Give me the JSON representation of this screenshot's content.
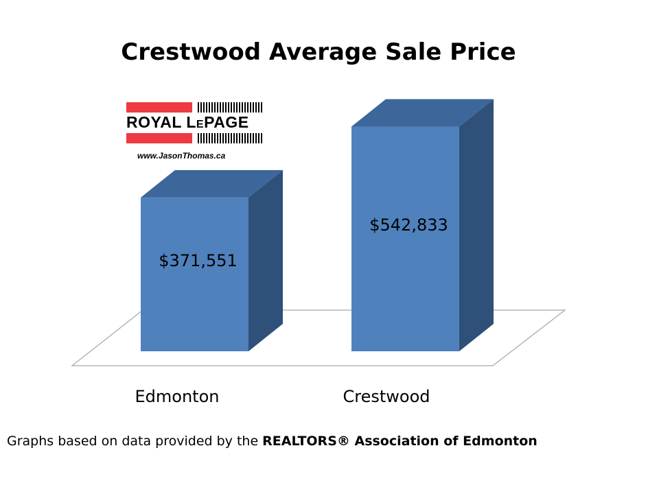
{
  "chart_data": {
    "type": "bar",
    "title": "Crestwood Average Sale Price",
    "categories": [
      "Edmonton",
      "Crestwood"
    ],
    "values": [
      371551,
      542833
    ],
    "data_labels": [
      "$371,551",
      "$542,833"
    ],
    "xlabel": "",
    "ylabel": "",
    "ylim": [
      0,
      600000
    ],
    "grid": false,
    "style": "3d-column",
    "bar_color": "#4f81bd",
    "bar_top_color": "#3d669a",
    "bar_side_color": "#2f5079"
  },
  "logo": {
    "brand_left": "ROYAL L",
    "brand_small": "E",
    "brand_right": "PAGE",
    "url": "www.JasonThomas.ca",
    "bar_color": "#ee3a43"
  },
  "footer": {
    "prefix": "Graphs based on data provided by the ",
    "org": "REALTORS® Association of Edmonton"
  }
}
